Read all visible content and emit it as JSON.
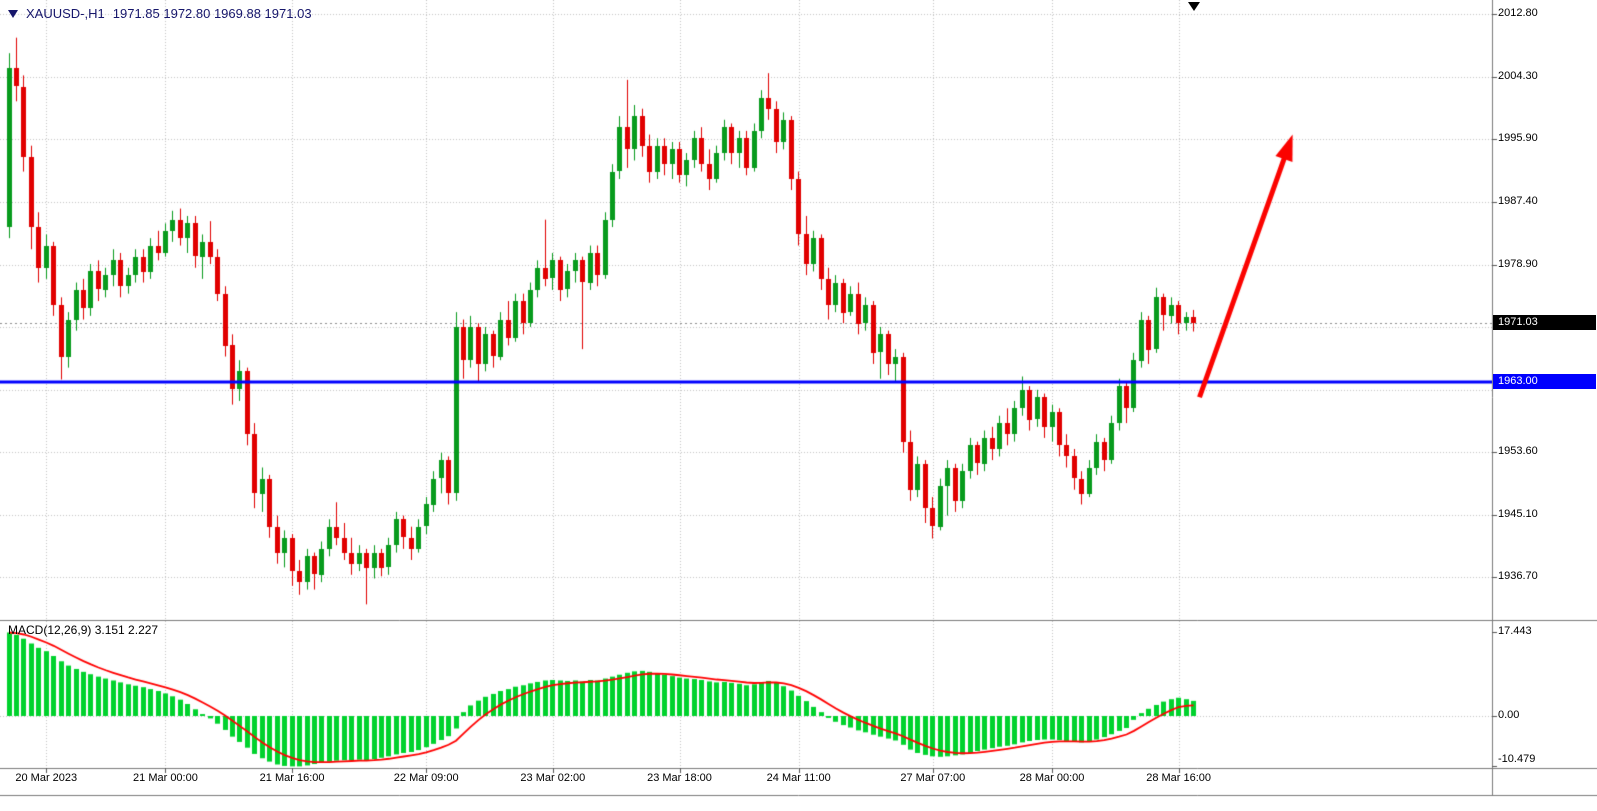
{
  "header": {
    "symbol": "XAUUSD-,H1",
    "ohlc": "1971.85 1972.80 1969.88 1971.03",
    "title": "XAUUSD-,H1  1971.85 1972.80 1969.88 1971.03"
  },
  "colors": {
    "bull": "#089b1d",
    "bear": "#e10000",
    "macd_hist": "#00d22d",
    "macd_signal": "#ff0000",
    "level_line": "#0000fe",
    "arrow": "#fb0300",
    "grid": "#c4c4c4",
    "current_price_line": "#8c8c8c",
    "separator": "#7a7a7a",
    "axis_text": "#000000",
    "header_text": "#16166b",
    "tag_current_bg": "#000000",
    "tag_level_bg": "#0000fe"
  },
  "chart_data": {
    "type": "candlestick",
    "symbol": "XAUUSD-",
    "timeframe": "H1",
    "last_ohlc": {
      "open": 1971.85,
      "high": 1972.8,
      "low": 1969.88,
      "close": 1971.03
    },
    "price_pane_ylim": [
      1930.9,
      2014.7
    ],
    "macd_pane_ylim": [
      -10.8,
      20.0
    ],
    "price_axis_labels": [
      {
        "text": "2012.80",
        "price": 2012.8
      },
      {
        "text": "2004.30",
        "price": 2004.3
      },
      {
        "text": "1995.90",
        "price": 1995.9
      },
      {
        "text": "1987.40",
        "price": 1987.4
      },
      {
        "text": "1978.90",
        "price": 1978.9
      },
      {
        "text": "1953.60",
        "price": 1953.6
      },
      {
        "text": "1945.10",
        "price": 1945.1
      },
      {
        "text": "1936.70",
        "price": 1936.7
      }
    ],
    "price_grid": [
      2012.8,
      2004.3,
      1995.9,
      1987.4,
      1978.9,
      1970.45,
      1961.95,
      1953.6,
      1945.1,
      1936.7
    ],
    "current_price_tag": {
      "text": "1971.03",
      "price": 1971.03
    },
    "level_tag": {
      "text": "1963.00",
      "price": 1963.0
    },
    "level_line_price": 1963.0,
    "trend_arrow": {
      "start_index": 159.8,
      "start_price": 1961.0,
      "end_index": 172.3,
      "end_price": 1996.5
    },
    "time_ticks": [
      {
        "text": "20 Mar 2023",
        "index": 5
      },
      {
        "text": "21 Mar 00:00",
        "index": 21
      },
      {
        "text": "21 Mar 16:00",
        "index": 38
      },
      {
        "text": "22 Mar 09:00",
        "index": 56
      },
      {
        "text": "23 Mar 02:00",
        "index": 73
      },
      {
        "text": "23 Mar 18:00",
        "index": 90
      },
      {
        "text": "24 Mar 11:00",
        "index": 106
      },
      {
        "text": "27 Mar 07:00",
        "index": 124
      },
      {
        "text": "28 Mar 00:00",
        "index": 140
      },
      {
        "text": "28 Mar 16:00",
        "index": 157
      }
    ],
    "candles": [
      [
        1984,
        2007.5,
        1982.5,
        2005.5
      ],
      [
        2005.5,
        2009.6,
        2001,
        2003
      ],
      [
        2003,
        2004.5,
        1991.5,
        1993.5
      ],
      [
        1993.5,
        1995,
        1981,
        1984
      ],
      [
        1984,
        1986,
        1976.5,
        1978.5
      ],
      [
        1978.5,
        1983,
        1977,
        1981.5
      ],
      [
        1981.5,
        1982,
        1972,
        1973.5
      ],
      [
        1973.5,
        1974.5,
        1963.4,
        1966.5
      ],
      [
        1966.5,
        1972.5,
        1965,
        1971.5
      ],
      [
        1971.5,
        1976.5,
        1970,
        1975.5
      ],
      [
        1975.5,
        1977,
        1971.5,
        1973
      ],
      [
        1973,
        1979,
        1972,
        1978
      ],
      [
        1978,
        1979.5,
        1974,
        1975.5
      ],
      [
        1975.5,
        1978.5,
        1974.5,
        1977.5
      ],
      [
        1977.5,
        1981,
        1976,
        1979.5
      ],
      [
        1979.5,
        1980.5,
        1974.5,
        1976
      ],
      [
        1976,
        1978.5,
        1975,
        1977.5
      ],
      [
        1977.5,
        1981,
        1976.5,
        1980
      ],
      [
        1980,
        1981,
        1976.5,
        1978
      ],
      [
        1978,
        1982.5,
        1977,
        1981.5
      ],
      [
        1981.5,
        1983.5,
        1979.5,
        1980.5
      ],
      [
        1980.5,
        1984.5,
        1980,
        1983.5
      ],
      [
        1983.5,
        1986.2,
        1982,
        1985
      ],
      [
        1985,
        1986.5,
        1981.5,
        1982.5
      ],
      [
        1982.5,
        1985.5,
        1980.5,
        1984.5
      ],
      [
        1984.5,
        1985.5,
        1978.5,
        1980
      ],
      [
        1980,
        1983,
        1977,
        1982
      ],
      [
        1982,
        1984.8,
        1979,
        1980
      ],
      [
        1980,
        1981,
        1974,
        1975
      ],
      [
        1975,
        1976,
        1966.5,
        1968
      ],
      [
        1968,
        1969.5,
        1960,
        1962
      ],
      [
        1962,
        1966,
        1960.5,
        1964.5
      ],
      [
        1964.5,
        1965,
        1954.5,
        1956
      ],
      [
        1956,
        1957.5,
        1946,
        1948
      ],
      [
        1948,
        1951.5,
        1945.5,
        1950
      ],
      [
        1950,
        1950.5,
        1942,
        1943.5
      ],
      [
        1943.5,
        1945,
        1938.5,
        1940
      ],
      [
        1940,
        1943,
        1938,
        1942
      ],
      [
        1942,
        1942.5,
        1935.5,
        1937.5
      ],
      [
        1937.5,
        1939,
        1934.3,
        1936
      ],
      [
        1936,
        1940.5,
        1935,
        1939.5
      ],
      [
        1939.5,
        1940,
        1935,
        1937
      ],
      [
        1937,
        1941.5,
        1936,
        1940.5
      ],
      [
        1940.5,
        1944.5,
        1939.5,
        1943.5
      ],
      [
        1943.5,
        1946.8,
        1941,
        1942
      ],
      [
        1942,
        1944,
        1939,
        1940
      ],
      [
        1940,
        1942,
        1937,
        1938.5
      ],
      [
        1938.5,
        1941,
        1937.5,
        1940
      ],
      [
        1940,
        1940.5,
        1933,
        1938
      ],
      [
        1938,
        1941,
        1936.5,
        1940
      ],
      [
        1940,
        1940.5,
        1936.8,
        1938
      ],
      [
        1938,
        1942,
        1937,
        1941
      ],
      [
        1941,
        1945.5,
        1940,
        1944.5
      ],
      [
        1944.5,
        1945,
        1940.5,
        1942
      ],
      [
        1942,
        1943.5,
        1939,
        1940.5
      ],
      [
        1940.5,
        1944.5,
        1940,
        1943.5
      ],
      [
        1943.5,
        1947.5,
        1942.5,
        1946.5
      ],
      [
        1946.5,
        1951,
        1945.5,
        1950
      ],
      [
        1950,
        1953.5,
        1948,
        1952.5
      ],
      [
        1952.5,
        1953,
        1946.5,
        1948
      ],
      [
        1948,
        1972.5,
        1947,
        1970.5
      ],
      [
        1970.5,
        1971.5,
        1963.5,
        1966
      ],
      [
        1966,
        1972,
        1965,
        1970.5
      ],
      [
        1970.5,
        1971,
        1963,
        1965.5
      ],
      [
        1965.5,
        1970.5,
        1964.5,
        1969.5
      ],
      [
        1969.5,
        1970,
        1965,
        1966.5
      ],
      [
        1966.5,
        1972.5,
        1966,
        1971.5
      ],
      [
        1971.5,
        1974,
        1968,
        1969
      ],
      [
        1969,
        1975,
        1968.5,
        1974
      ],
      [
        1974,
        1975,
        1969.5,
        1971
      ],
      [
        1971,
        1976.5,
        1970.5,
        1975.5
      ],
      [
        1975.5,
        1979.5,
        1974.5,
        1978.5
      ],
      [
        1978.5,
        1985,
        1976,
        1977
      ],
      [
        1977,
        1980.5,
        1975.5,
        1979.5
      ],
      [
        1979.5,
        1980,
        1974,
        1975.5
      ],
      [
        1975.5,
        1979,
        1974.5,
        1978
      ],
      [
        1978,
        1980.5,
        1976.5,
        1979.5
      ],
      [
        1979.5,
        1980,
        1967.5,
        1976.5
      ],
      [
        1976.5,
        1981.5,
        1975.5,
        1980.5
      ],
      [
        1980.5,
        1981.5,
        1976,
        1977.5
      ],
      [
        1977.5,
        1986,
        1977,
        1985
      ],
      [
        1985,
        1992.5,
        1984,
        1991.5
      ],
      [
        1991.5,
        1999,
        1990.5,
        1997.5
      ],
      [
        1997.5,
        2003.9,
        1992,
        1994.5
      ],
      [
        1994.5,
        2000.5,
        1993,
        1999
      ],
      [
        1999,
        2000,
        1993.5,
        1995
      ],
      [
        1995,
        1996.5,
        1990,
        1991.5
      ],
      [
        1991.5,
        1996,
        1990.5,
        1995
      ],
      [
        1995,
        1996,
        1991,
        1992.5
      ],
      [
        1992.5,
        1995.5,
        1990.5,
        1994.5
      ],
      [
        1994.5,
        1995.5,
        1990,
        1991
      ],
      [
        1991,
        1994,
        1989.5,
        1993
      ],
      [
        1993,
        1997,
        1992,
        1996
      ],
      [
        1996,
        1997.5,
        1991.5,
        1992.5
      ],
      [
        1992.5,
        1994.5,
        1989,
        1990.5
      ],
      [
        1990.5,
        1995,
        1990,
        1994
      ],
      [
        1994,
        1998.5,
        1993,
        1997.5
      ],
      [
        1997.5,
        1998,
        1992.5,
        1994
      ],
      [
        1994,
        1997,
        1992,
        1996
      ],
      [
        1996,
        1997,
        1991,
        1992
      ],
      [
        1992,
        1998,
        1991.5,
        1997
      ],
      [
        1997,
        2002.5,
        1996,
        2001.5
      ],
      [
        2001.5,
        2004.8,
        1998.5,
        2000
      ],
      [
        2000,
        2001,
        1994,
        1995.5
      ],
      [
        1995.5,
        1999.5,
        1994.5,
        1998.5
      ],
      [
        1998.5,
        1999,
        1989,
        1990.5
      ],
      [
        1990.5,
        1991.5,
        1981.5,
        1983
      ],
      [
        1983,
        1985.5,
        1977.5,
        1979
      ],
      [
        1979,
        1983.5,
        1978,
        1982.5
      ],
      [
        1982.5,
        1983,
        1975.5,
        1977
      ],
      [
        1977,
        1978.5,
        1971.5,
        1973.5
      ],
      [
        1973.5,
        1977.5,
        1972.5,
        1976.5
      ],
      [
        1976.5,
        1977,
        1971,
        1972.5
      ],
      [
        1972.5,
        1976,
        1972,
        1975
      ],
      [
        1975,
        1976.5,
        1969.5,
        1971
      ],
      [
        1971,
        1974.5,
        1970,
        1973.5
      ],
      [
        1973.5,
        1974,
        1965.5,
        1967
      ],
      [
        1967,
        1970.5,
        1963.5,
        1969.5
      ],
      [
        1969.5,
        1970,
        1964,
        1965.5
      ],
      [
        1965.5,
        1967.5,
        1963,
        1966.5
      ],
      [
        1966.5,
        1967,
        1953.5,
        1955
      ],
      [
        1955,
        1956.5,
        1947,
        1948.5
      ],
      [
        1948.5,
        1953,
        1947.5,
        1952
      ],
      [
        1952,
        1952.5,
        1944,
        1946
      ],
      [
        1946,
        1947.5,
        1941.9,
        1943.5
      ],
      [
        1943.5,
        1950,
        1943,
        1949
      ],
      [
        1949,
        1952.5,
        1945,
        1951.5
      ],
      [
        1951.5,
        1952,
        1945.5,
        1947
      ],
      [
        1947,
        1952,
        1946,
        1951
      ],
      [
        1951,
        1955.5,
        1950,
        1954.5
      ],
      [
        1954.5,
        1955,
        1950.5,
        1952
      ],
      [
        1952,
        1956.5,
        1951,
        1955.5
      ],
      [
        1955.5,
        1957,
        1952.5,
        1954
      ],
      [
        1954,
        1958.5,
        1953,
        1957.5
      ],
      [
        1957.5,
        1959.5,
        1954.5,
        1956
      ],
      [
        1956,
        1960.5,
        1955,
        1959.5
      ],
      [
        1959.5,
        1963.8,
        1958.5,
        1962
      ],
      [
        1962,
        1962.5,
        1956.5,
        1958
      ],
      [
        1958,
        1962,
        1957,
        1961
      ],
      [
        1961,
        1961.5,
        1955.5,
        1957
      ],
      [
        1957,
        1960,
        1955,
        1959
      ],
      [
        1959,
        1959.5,
        1953,
        1954.5
      ],
      [
        1954.5,
        1956,
        1951.5,
        1953
      ],
      [
        1953,
        1954,
        1948.5,
        1950
      ],
      [
        1950,
        1951,
        1946.5,
        1948
      ],
      [
        1948,
        1952.5,
        1947.5,
        1951.5
      ],
      [
        1951.5,
        1956,
        1950.5,
        1955
      ],
      [
        1955,
        1955.5,
        1951,
        1952.5
      ],
      [
        1952.5,
        1958.5,
        1952,
        1957.5
      ],
      [
        1957.5,
        1963.5,
        1956.5,
        1962.5
      ],
      [
        1962.5,
        1963,
        1957.5,
        1959.5
      ],
      [
        1959.5,
        1967,
        1959,
        1966
      ],
      [
        1966,
        1972.5,
        1965,
        1971.5
      ],
      [
        1971.5,
        1972,
        1965.5,
        1967.5
      ],
      [
        1967.5,
        1975.8,
        1967,
        1974.5
      ],
      [
        1974.5,
        1975,
        1970,
        1972
      ],
      [
        1972,
        1974.5,
        1971,
        1973.5
      ],
      [
        1973.5,
        1974,
        1969.5,
        1971
      ],
      [
        1971,
        1972.5,
        1970,
        1971.85
      ],
      [
        1971.85,
        1972.8,
        1969.88,
        1971.03
      ]
    ],
    "macd": {
      "label": "MACD(12,26,9) 3.151 2.227",
      "main_value": 3.151,
      "signal_value": 2.227,
      "axis_labels": [
        {
          "text": "17.443",
          "value": 17.443
        },
        {
          "text": "0.00",
          "value": 0
        },
        {
          "text": "-10.479",
          "value": -10.479
        }
      ],
      "histogram": [
        17.4,
        16.9,
        16.1,
        15.1,
        14.2,
        13.5,
        12.5,
        11.4,
        10.5,
        9.8,
        9.2,
        8.7,
        8.2,
        7.8,
        7.4,
        7.0,
        6.6,
        6.3,
        6.0,
        5.6,
        5.2,
        4.7,
        4.1,
        3.4,
        2.5,
        1.4,
        0.4,
        -0.5,
        -1.6,
        -2.9,
        -4.3,
        -5.4,
        -6.6,
        -7.9,
        -8.8,
        -9.5,
        -10.1,
        -10.4,
        -10.5,
        -10.5,
        -10.3,
        -10.0,
        -9.7,
        -9.5,
        -9.3,
        -9.2,
        -9.2,
        -9.1,
        -9.2,
        -9.0,
        -8.7,
        -8.4,
        -8.0,
        -7.7,
        -7.5,
        -7.1,
        -6.5,
        -5.8,
        -5.0,
        -4.2,
        -2.6,
        0.8,
        2.2,
        3.2,
        4.0,
        4.6,
        5.2,
        5.6,
        6.1,
        6.4,
        6.8,
        7.1,
        7.4,
        7.5,
        7.4,
        7.3,
        7.4,
        7.2,
        7.5,
        7.4,
        7.8,
        8.2,
        8.6,
        9.0,
        9.3,
        9.4,
        9.2,
        8.9,
        8.6,
        8.3,
        8.0,
        7.8,
        7.7,
        7.5,
        7.2,
        7.0,
        7.1,
        6.9,
        6.7,
        6.4,
        6.6,
        7.0,
        7.3,
        6.9,
        6.2,
        5.3,
        4.2,
        3.1,
        1.9,
        0.8,
        -0.4,
        -1.2,
        -1.9,
        -2.4,
        -3.0,
        -3.4,
        -3.9,
        -4.3,
        -4.7,
        -5.1,
        -6.0,
        -7.0,
        -7.7,
        -8.1,
        -8.4,
        -8.5,
        -8.4,
        -8.2,
        -8.0,
        -7.7,
        -7.3,
        -7.0,
        -6.7,
        -6.4,
        -6.2,
        -5.9,
        -5.5,
        -5.2,
        -5.0,
        -4.9,
        -4.9,
        -5.0,
        -5.2,
        -5.4,
        -5.5,
        -5.3,
        -4.9,
        -4.4,
        -3.8,
        -3.1,
        -2.5,
        -0.8,
        0.6,
        1.5,
        2.3,
        3.0,
        3.5,
        3.8,
        3.5,
        3.151
      ],
      "signal": [
        17.4,
        17.28,
        16.98,
        16.51,
        15.93,
        15.32,
        14.62,
        13.81,
        12.98,
        12.19,
        11.44,
        10.75,
        10.11,
        9.53,
        9.0,
        8.5,
        8.03,
        7.6,
        7.2,
        6.8,
        6.4,
        5.97,
        5.5,
        4.98,
        4.36,
        3.62,
        2.81,
        1.98,
        1.09,
        0.09,
        -1.01,
        -2.11,
        -3.23,
        -4.4,
        -5.5,
        -6.5,
        -7.4,
        -8.15,
        -8.74,
        -9.18,
        -9.46,
        -9.59,
        -9.62,
        -9.59,
        -9.52,
        -9.44,
        -9.38,
        -9.31,
        -9.28,
        -9.21,
        -9.08,
        -8.91,
        -8.68,
        -8.44,
        -8.2,
        -7.93,
        -7.57,
        -7.13,
        -6.6,
        -6.0,
        -5.15,
        -3.66,
        -2.2,
        -0.85,
        0.36,
        1.42,
        2.37,
        3.18,
        3.91,
        4.53,
        5.1,
        5.6,
        6.05,
        6.41,
        6.66,
        6.82,
        6.97,
        7.03,
        7.14,
        7.21,
        7.36,
        7.57,
        7.83,
        8.12,
        8.41,
        8.66,
        8.8,
        8.82,
        8.77,
        8.65,
        8.49,
        8.31,
        8.16,
        8.0,
        7.8,
        7.6,
        7.47,
        7.33,
        7.17,
        6.98,
        6.88,
        6.91,
        7.01,
        6.98,
        6.79,
        6.41,
        5.86,
        5.17,
        4.35,
        3.46,
        2.5,
        1.57,
        0.7,
        -0.07,
        -0.8,
        -1.45,
        -2.06,
        -2.62,
        -3.14,
        -3.63,
        -4.22,
        -4.92,
        -5.61,
        -6.23,
        -6.77,
        -7.21,
        -7.5,
        -7.68,
        -7.76,
        -7.74,
        -7.63,
        -7.47,
        -7.28,
        -7.06,
        -6.85,
        -6.61,
        -6.33,
        -6.05,
        -5.79,
        -5.56,
        -5.4,
        -5.3,
        -5.27,
        -5.3,
        -5.35,
        -5.34,
        -5.23,
        -5.02,
        -4.72,
        -4.31,
        -3.86,
        -3.1,
        -2.18,
        -1.26,
        -0.37,
        0.47,
        1.23,
        1.87,
        2.1,
        2.227
      ]
    }
  }
}
